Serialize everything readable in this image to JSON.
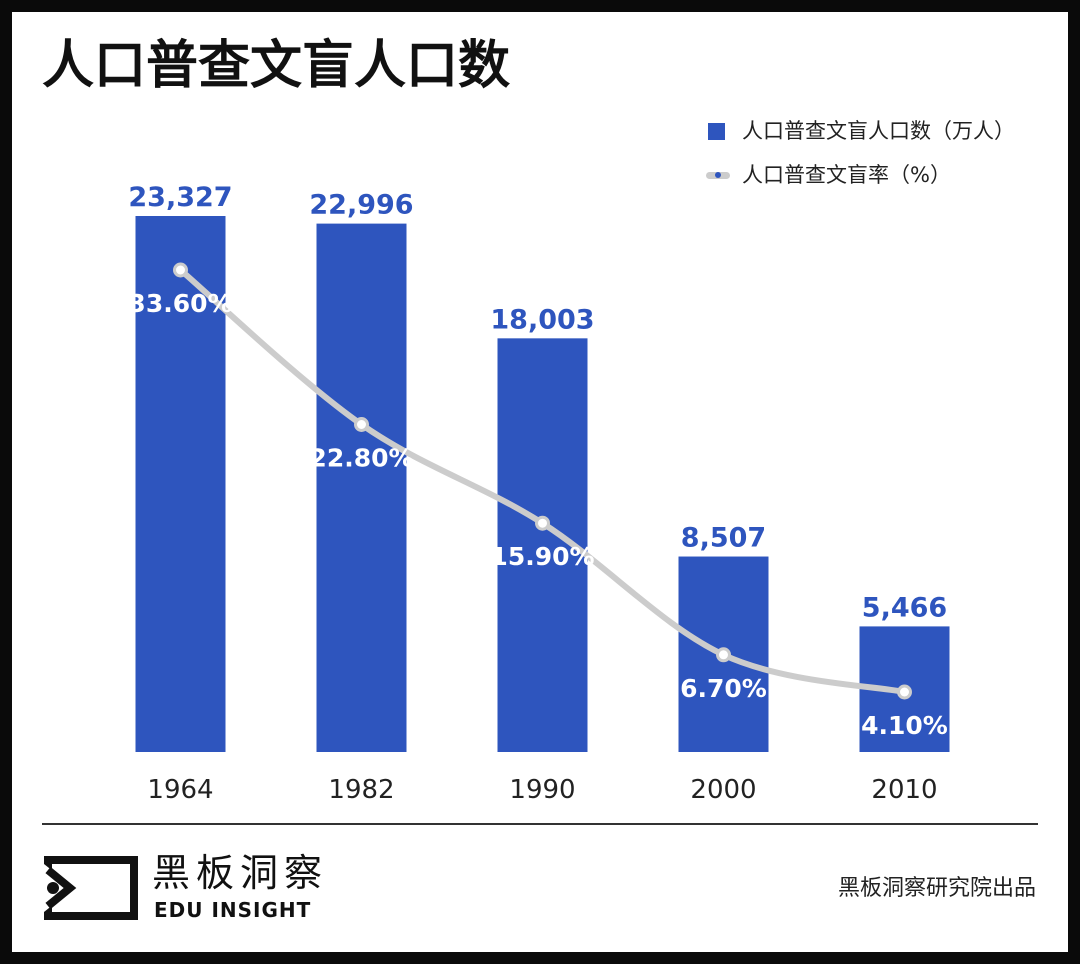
{
  "title": "人口普查文盲人口数",
  "colors": {
    "bar": "#2e55be",
    "line": "#cccccc",
    "marker_fill": "#ffffff",
    "value_label": "#2e55be",
    "rate_label": "#ffffff",
    "frame": "#0a0a0a",
    "text": "#222222"
  },
  "chart_data": {
    "type": "bar",
    "categories": [
      "1964",
      "1982",
      "1990",
      "2000",
      "2010"
    ],
    "series": [
      {
        "name": "人口普查文盲人口数（万人）",
        "type": "bar",
        "values": [
          23327,
          22996,
          18003,
          8507,
          5466
        ],
        "labels": [
          "23,327",
          "22,996",
          "18,003",
          "8,507",
          "5,466"
        ]
      },
      {
        "name": "人口普查文盲率（%）",
        "type": "line",
        "values": [
          33.6,
          22.8,
          15.9,
          6.7,
          4.1
        ],
        "labels": [
          "33.60%",
          "22.80%",
          "15.90%",
          "6.70%",
          "4.10%"
        ]
      }
    ],
    "legend": "top-right",
    "grid": false
  },
  "footer": {
    "brand_cn": "黑板洞察",
    "brand_en": "EDU INSIGHT",
    "logo_icon": "eye-frame-icon",
    "credit": "黑板洞察研究院出品"
  }
}
